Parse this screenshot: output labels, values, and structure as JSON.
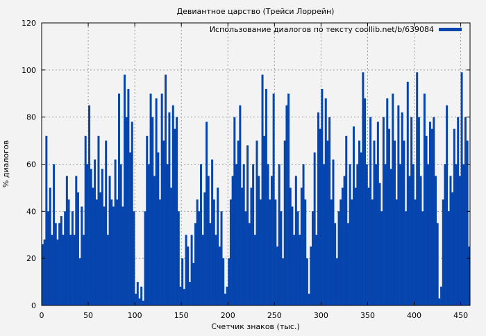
{
  "chart_data": {
    "type": "bar",
    "title": "Девиантное царство (Трейси Лоррейн)",
    "xlabel": "Счетчик знаков (тыс.)",
    "ylabel": "% диалогов",
    "xlim": [
      0,
      460
    ],
    "ylim": [
      0,
      120
    ],
    "xticks": [
      0,
      50,
      100,
      150,
      200,
      250,
      300,
      350,
      400,
      450
    ],
    "yticks": [
      0,
      20,
      40,
      60,
      80,
      100,
      120
    ],
    "grid": true,
    "legend_position": "top-right",
    "bin_width": 2,
    "series": [
      {
        "name": "Использование диалогов по тексту coollib.net/b/639084",
        "color": "#0645ad",
        "x_start": 0,
        "values": [
          26,
          28,
          72,
          40,
          50,
          30,
          60,
          35,
          28,
          35,
          38,
          30,
          40,
          55,
          45,
          30,
          40,
          30,
          55,
          48,
          20,
          42,
          30,
          72,
          60,
          85,
          58,
          50,
          62,
          45,
          72,
          48,
          58,
          42,
          70,
          30,
          55,
          45,
          42,
          62,
          45,
          90,
          60,
          42,
          98,
          80,
          92,
          65,
          78,
          40,
          5,
          10,
          3,
          8,
          2,
          40,
          72,
          60,
          90,
          80,
          55,
          88,
          65,
          45,
          90,
          70,
          98,
          60,
          82,
          50,
          85,
          75,
          80,
          40,
          8,
          20,
          7,
          30,
          25,
          10,
          30,
          18,
          35,
          45,
          40,
          60,
          30,
          48,
          78,
          55,
          35,
          62,
          45,
          30,
          50,
          25,
          40,
          20,
          5,
          8,
          20,
          45,
          55,
          80,
          60,
          70,
          85,
          50,
          60,
          40,
          68,
          35,
          50,
          60,
          30,
          70,
          55,
          45,
          98,
          72,
          92,
          60,
          45,
          55,
          90,
          45,
          25,
          60,
          40,
          20,
          70,
          85,
          90,
          50,
          42,
          30,
          55,
          40,
          30,
          50,
          60,
          45,
          20,
          5,
          25,
          40,
          65,
          30,
          82,
          75,
          92,
          60,
          88,
          70,
          80,
          45,
          62,
          35,
          20,
          40,
          45,
          50,
          55,
          72,
          35,
          60,
          45,
          76,
          50,
          60,
          70,
          65,
          99,
          88,
          60,
          50,
          80,
          45,
          70,
          60,
          78,
          52,
          40,
          80,
          60,
          88,
          75,
          58,
          90,
          70,
          45,
          85,
          60,
          82,
          70,
          40,
          95,
          55,
          80,
          60,
          45,
          99,
          80,
          55,
          40,
          90,
          72,
          60,
          78,
          75,
          80,
          55,
          35,
          3,
          8,
          45,
          60,
          85,
          40,
          55,
          48,
          75,
          60,
          80,
          55,
          99,
          60,
          80,
          70,
          25
        ]
      }
    ]
  }
}
